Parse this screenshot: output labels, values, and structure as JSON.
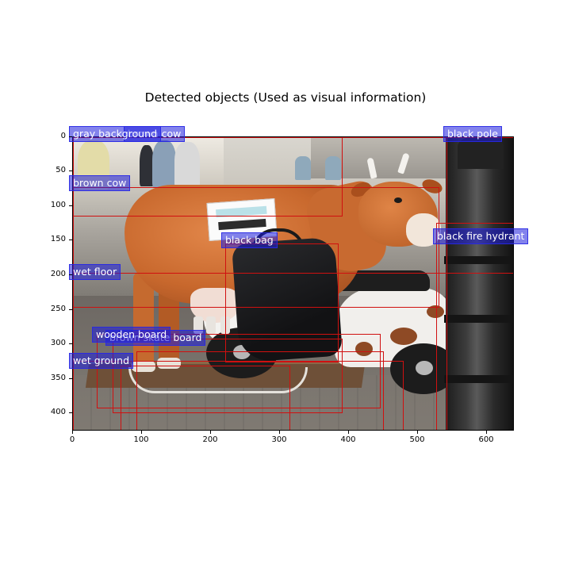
{
  "figure": {
    "title": "Detected objects (Used as visual information)"
  },
  "axes": {
    "x_ticks": [
      "0",
      "100",
      "200",
      "300",
      "400",
      "500",
      "600"
    ],
    "y_ticks": [
      "0",
      "50",
      "100",
      "150",
      "200",
      "250",
      "300",
      "350",
      "400"
    ]
  },
  "detections": [
    {
      "label": "gray background"
    },
    {
      "label": "brown cow"
    },
    {
      "label": "brown cow"
    },
    {
      "label": "black pole"
    },
    {
      "label": "black fire hydrant"
    },
    {
      "label": "black bag"
    },
    {
      "label": "wet floor"
    },
    {
      "label": "wooden board"
    },
    {
      "label": "brown skate board"
    },
    {
      "label": "wet ground"
    }
  ],
  "colors": {
    "box": "#d01010",
    "label_fill": "#1e1edc"
  }
}
